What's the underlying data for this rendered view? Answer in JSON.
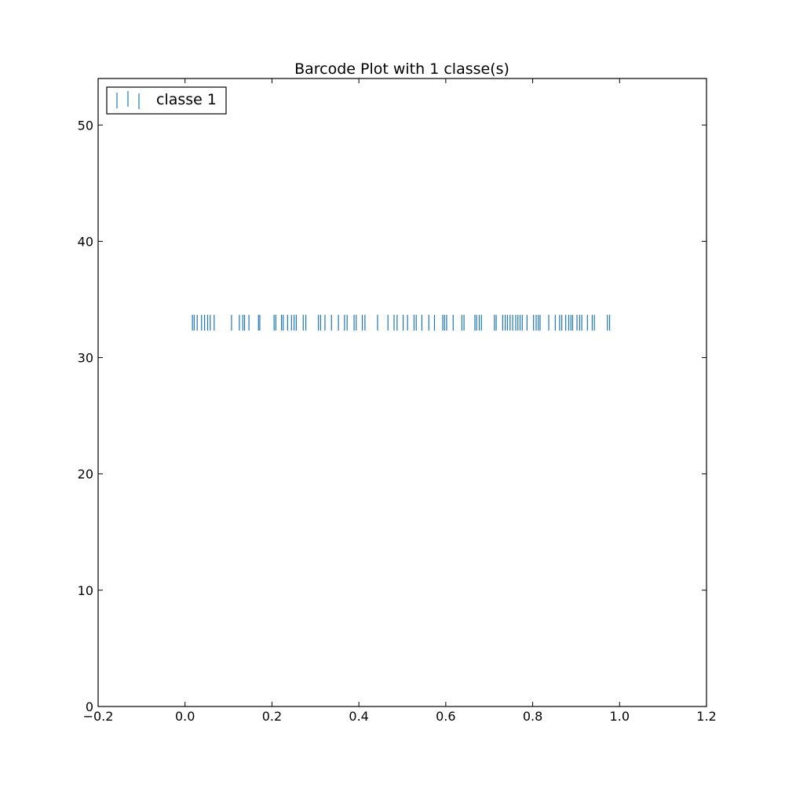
{
  "chart_data": {
    "type": "scatter",
    "marker": "vertical-line",
    "title": "Barcode Plot with 1 classe(s)",
    "xlabel": "",
    "ylabel": "",
    "xlim": [
      -0.2,
      1.2
    ],
    "ylim": [
      0,
      54
    ],
    "xticks": [
      -0.2,
      0.0,
      0.2,
      0.4,
      0.6,
      0.8,
      1.0,
      1.2
    ],
    "xtick_labels": [
      "−0.2",
      "0.0",
      "0.2",
      "0.4",
      "0.6",
      "0.8",
      "1.0",
      "1.2"
    ],
    "yticks": [
      0,
      10,
      20,
      30,
      40,
      50
    ],
    "ytick_labels": [
      "0",
      "10",
      "20",
      "30",
      "40",
      "50"
    ],
    "grid": false,
    "legend_position": "top-left",
    "series": [
      {
        "name": "classe 1",
        "color": "#1f77b4",
        "y": 33,
        "x": [
          0.017,
          0.021,
          0.028,
          0.038,
          0.045,
          0.052,
          0.058,
          0.067,
          0.107,
          0.125,
          0.133,
          0.137,
          0.147,
          0.169,
          0.172,
          0.205,
          0.209,
          0.222,
          0.226,
          0.236,
          0.245,
          0.251,
          0.256,
          0.272,
          0.278,
          0.307,
          0.312,
          0.322,
          0.337,
          0.353,
          0.367,
          0.373,
          0.389,
          0.394,
          0.408,
          0.414,
          0.443,
          0.467,
          0.481,
          0.488,
          0.502,
          0.512,
          0.527,
          0.532,
          0.545,
          0.561,
          0.574,
          0.593,
          0.597,
          0.602,
          0.617,
          0.637,
          0.642,
          0.667,
          0.671,
          0.677,
          0.682,
          0.712,
          0.716,
          0.731,
          0.737,
          0.742,
          0.748,
          0.754,
          0.761,
          0.766,
          0.771,
          0.776,
          0.787,
          0.802,
          0.808,
          0.813,
          0.817,
          0.837,
          0.852,
          0.862,
          0.867,
          0.876,
          0.883,
          0.888,
          0.892,
          0.902,
          0.908,
          0.913,
          0.926,
          0.937,
          0.942,
          0.972,
          0.977
        ]
      }
    ]
  }
}
